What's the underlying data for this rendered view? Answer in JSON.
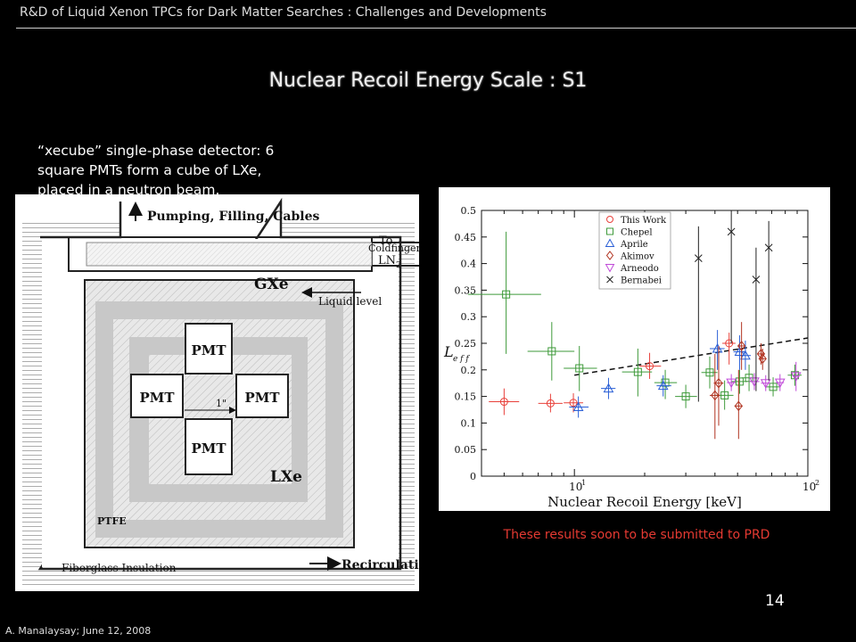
{
  "header": {
    "title": "R&D of Liquid Xenon TPCs for Dark Matter Searches : Challenges and Developments"
  },
  "slide": {
    "title": "Nuclear Recoil Energy Scale : S1",
    "description_lines": [
      "“xecube” single-phase detector: 6",
      "square PMTs form a cube of LXe,",
      "placed in a neutron beam."
    ],
    "note": "These results soon to be submitted to PRD",
    "page_number": "14",
    "footer": "A. Manalaysay; June 12, 2008"
  },
  "diagram": {
    "top_label": "Pumping, Filling, Cables",
    "to_label": "To",
    "ln2_label": "LN",
    "ln2_sub": "2",
    "coldfinger": "Coldfinger",
    "gxe": "GXe",
    "liquid_level": "Liquid level",
    "pmt": "PMT",
    "gap": "1\"",
    "lxe": "LXe",
    "ptfe": "PTFE",
    "fiberglass": "Fiberglass Insulation",
    "recirculation": "Recirculation"
  },
  "chart_data": {
    "type": "scatter",
    "xscale": "log",
    "xlim": [
      4,
      100
    ],
    "ylim": [
      0,
      0.5
    ],
    "xlabel": "Nuclear Recoil Energy [keV]",
    "ylabel": "L_eff",
    "ylabel_main": "L",
    "ylabel_sub": "e f f",
    "x_tick_labels": [
      {
        "x": 10,
        "base": "10",
        "exp": "1"
      },
      {
        "x": 100,
        "base": "10",
        "exp": "2"
      }
    ],
    "y_ticks": [
      0,
      0.05,
      0.1,
      0.15,
      0.2,
      0.25,
      0.3,
      0.35,
      0.4,
      0.45,
      0.5
    ],
    "y_tick_labels": [
      "0",
      "0.05",
      "0.1",
      "0.15",
      "0.2",
      "0.25",
      "0.3",
      "0.35",
      "0.4",
      "0.45",
      "0.5"
    ],
    "legend_position": "top-right",
    "series": [
      {
        "name": "This Work",
        "color": "#e8403a",
        "marker": "circle",
        "points": [
          {
            "x": 5.0,
            "y": 0.14,
            "xl": 4.3,
            "xh": 5.8,
            "yl": 0.115,
            "yh": 0.165
          },
          {
            "x": 7.9,
            "y": 0.137,
            "xl": 7.0,
            "xh": 8.9,
            "yl": 0.12,
            "yh": 0.155
          },
          {
            "x": 9.9,
            "y": 0.138,
            "xl": 9.0,
            "xh": 10.9,
            "yl": 0.12,
            "yh": 0.156
          },
          {
            "x": 21.0,
            "y": 0.207,
            "xl": 19.0,
            "xh": 23.5,
            "yl": 0.183,
            "yh": 0.232
          },
          {
            "x": 46.0,
            "y": 0.25,
            "xl": 43.0,
            "xh": 49.0,
            "yl": 0.21,
            "yh": 0.27
          }
        ]
      },
      {
        "name": "Chepel",
        "color": "#3e9a3a",
        "marker": "square",
        "points": [
          {
            "x": 5.1,
            "y": 0.342,
            "xl": 3.5,
            "xh": 7.2,
            "yl": 0.23,
            "yh": 0.46
          },
          {
            "x": 8.0,
            "y": 0.235,
            "xl": 6.3,
            "xh": 10.0,
            "yl": 0.18,
            "yh": 0.29
          },
          {
            "x": 10.5,
            "y": 0.203,
            "xl": 9.0,
            "xh": 12.5,
            "yl": 0.16,
            "yh": 0.245
          },
          {
            "x": 18.7,
            "y": 0.196,
            "xl": 16.0,
            "xh": 21.5,
            "yl": 0.15,
            "yh": 0.24
          },
          {
            "x": 24.5,
            "y": 0.176,
            "xl": 22.0,
            "xh": 27.5,
            "yl": 0.145,
            "yh": 0.2
          },
          {
            "x": 30.0,
            "y": 0.15,
            "xl": 27.0,
            "xh": 33.5,
            "yl": 0.128,
            "yh": 0.172
          },
          {
            "x": 38.0,
            "y": 0.195,
            "xl": 35.0,
            "xh": 41.0,
            "yl": 0.165,
            "yh": 0.225
          },
          {
            "x": 44.0,
            "y": 0.152,
            "xl": 40.0,
            "xh": 48.0,
            "yl": 0.125,
            "yh": 0.18
          },
          {
            "x": 51.0,
            "y": 0.178,
            "xl": 47.0,
            "xh": 55.0,
            "yl": 0.155,
            "yh": 0.2
          },
          {
            "x": 56.0,
            "y": 0.185,
            "xl": 52.0,
            "xh": 60.0,
            "yl": 0.16,
            "yh": 0.21
          },
          {
            "x": 71.0,
            "y": 0.168,
            "xl": 66.0,
            "xh": 76.0,
            "yl": 0.15,
            "yh": 0.186
          },
          {
            "x": 88.0,
            "y": 0.19,
            "xl": 82.0,
            "xh": 94.0,
            "yl": 0.17,
            "yh": 0.21
          }
        ]
      },
      {
        "name": "Aprile",
        "color": "#2a5fd6",
        "marker": "triangle-up",
        "points": [
          {
            "x": 10.4,
            "y": 0.13,
            "xl": 9.5,
            "xh": 11.5,
            "yl": 0.11,
            "yh": 0.15
          },
          {
            "x": 14.0,
            "y": 0.165,
            "xl": 13.0,
            "xh": 15.0,
            "yl": 0.145,
            "yh": 0.185
          },
          {
            "x": 24.0,
            "y": 0.17,
            "xl": 22.5,
            "xh": 26.0,
            "yl": 0.15,
            "yh": 0.19
          },
          {
            "x": 41.0,
            "y": 0.24,
            "xl": 38.0,
            "xh": 44.0,
            "yl": 0.2,
            "yh": 0.275
          },
          {
            "x": 51.0,
            "y": 0.234,
            "xl": 48.0,
            "xh": 54.0,
            "yl": 0.2,
            "yh": 0.265
          },
          {
            "x": 54.0,
            "y": 0.227,
            "xl": 51.0,
            "xh": 57.0,
            "yl": 0.2,
            "yh": 0.255
          }
        ]
      },
      {
        "name": "Akimov",
        "color": "#b0321f",
        "marker": "diamond",
        "points": [
          {
            "x": 40.0,
            "y": 0.152,
            "xl": 38.0,
            "xh": 42.0,
            "yl": 0.07,
            "yh": 0.23
          },
          {
            "x": 41.5,
            "y": 0.175,
            "xl": 39.5,
            "xh": 43.5,
            "yl": 0.095,
            "yh": 0.245
          },
          {
            "x": 50.5,
            "y": 0.132,
            "xl": 48.5,
            "xh": 52.5,
            "yl": 0.07,
            "yh": 0.2
          },
          {
            "x": 52.0,
            "y": 0.245,
            "xl": 50.0,
            "xh": 54.0,
            "yl": 0.2,
            "yh": 0.29
          },
          {
            "x": 63.0,
            "y": 0.23,
            "xl": 61.0,
            "xh": 65.0,
            "yl": 0.21,
            "yh": 0.25
          },
          {
            "x": 64.0,
            "y": 0.221,
            "xl": 62.0,
            "xh": 66.0,
            "yl": 0.2,
            "yh": 0.24
          }
        ]
      },
      {
        "name": "Arneodo",
        "color": "#c04ad8",
        "marker": "triangle-down",
        "points": [
          {
            "x": 47.0,
            "y": 0.176,
            "xl": 45.0,
            "xh": 49.0,
            "yl": 0.16,
            "yh": 0.192
          },
          {
            "x": 59.0,
            "y": 0.178,
            "xl": 56.0,
            "xh": 62.0,
            "yl": 0.162,
            "yh": 0.194
          },
          {
            "x": 66.0,
            "y": 0.175,
            "xl": 63.0,
            "xh": 69.0,
            "yl": 0.16,
            "yh": 0.19
          },
          {
            "x": 76.0,
            "y": 0.176,
            "xl": 73.0,
            "xh": 79.0,
            "yl": 0.16,
            "yh": 0.192
          },
          {
            "x": 89.0,
            "y": 0.188,
            "xl": 86.0,
            "xh": 92.0,
            "yl": 0.16,
            "yh": 0.215
          }
        ]
      },
      {
        "name": "Bernabei",
        "color": "#222222",
        "marker": "x",
        "points": [
          {
            "x": 34.0,
            "y": 0.41,
            "yl": 0.14,
            "yh": 0.47
          },
          {
            "x": 47.0,
            "y": 0.46,
            "yl": 0.25,
            "yh": 0.5
          },
          {
            "x": 60.0,
            "y": 0.37,
            "yl": 0.16,
            "yh": 0.43
          },
          {
            "x": 68.0,
            "y": 0.43,
            "yl": 0.18,
            "yh": 0.48
          }
        ]
      }
    ],
    "fit_line": {
      "style": "dashed",
      "x": [
        10,
        100
      ],
      "y": [
        0.19,
        0.26
      ]
    }
  }
}
